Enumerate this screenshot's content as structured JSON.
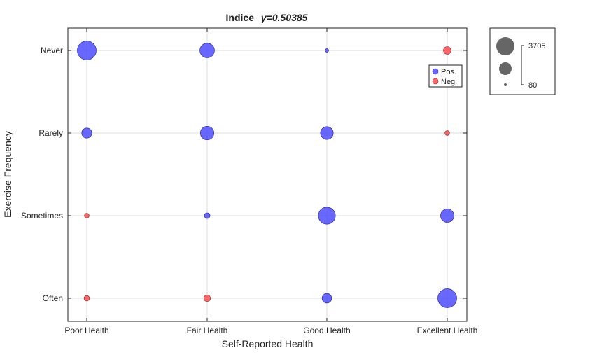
{
  "chart_data": {
    "type": "scatter",
    "title_prefix": "Indice",
    "title_gamma": "γ=0.50385",
    "xlabel": "Self-Reported Health",
    "ylabel": "Exercise Frequency",
    "x_categories": [
      "Poor Health",
      "Fair Health",
      "Good Health",
      "Excellent Health"
    ],
    "y_categories": [
      "Never",
      "Rarely",
      "Sometimes",
      "Often"
    ],
    "grid": true,
    "legend": {
      "position": "top-right",
      "entries": [
        {
          "label": "Pos.",
          "color": "#4d4dff"
        },
        {
          "label": "Neg.",
          "color": "#ff4d4d"
        }
      ]
    },
    "size_legend": {
      "max_label": "3705",
      "min_label": "80",
      "max_value": 3705,
      "min_value": 80
    },
    "points": [
      {
        "x": "Poor Health",
        "y": "Never",
        "value": 3705,
        "sign": "Pos."
      },
      {
        "x": "Fair Health",
        "y": "Never",
        "value": 2200,
        "sign": "Pos."
      },
      {
        "x": "Good Health",
        "y": "Never",
        "value": 120,
        "sign": "Pos."
      },
      {
        "x": "Excellent Health",
        "y": "Never",
        "value": 600,
        "sign": "Neg."
      },
      {
        "x": "Poor Health",
        "y": "Rarely",
        "value": 1050,
        "sign": "Pos."
      },
      {
        "x": "Fair Health",
        "y": "Rarely",
        "value": 1900,
        "sign": "Pos."
      },
      {
        "x": "Good Health",
        "y": "Rarely",
        "value": 1700,
        "sign": "Pos."
      },
      {
        "x": "Excellent Health",
        "y": "Rarely",
        "value": 230,
        "sign": "Neg."
      },
      {
        "x": "Poor Health",
        "y": "Sometimes",
        "value": 230,
        "sign": "Neg."
      },
      {
        "x": "Fair Health",
        "y": "Sometimes",
        "value": 330,
        "sign": "Pos."
      },
      {
        "x": "Good Health",
        "y": "Sometimes",
        "value": 3000,
        "sign": "Pos."
      },
      {
        "x": "Excellent Health",
        "y": "Sometimes",
        "value": 1850,
        "sign": "Pos."
      },
      {
        "x": "Poor Health",
        "y": "Often",
        "value": 300,
        "sign": "Neg."
      },
      {
        "x": "Fair Health",
        "y": "Often",
        "value": 450,
        "sign": "Neg."
      },
      {
        "x": "Good Health",
        "y": "Often",
        "value": 950,
        "sign": "Pos."
      },
      {
        "x": "Excellent Health",
        "y": "Often",
        "value": 3705,
        "sign": "Pos."
      }
    ]
  }
}
